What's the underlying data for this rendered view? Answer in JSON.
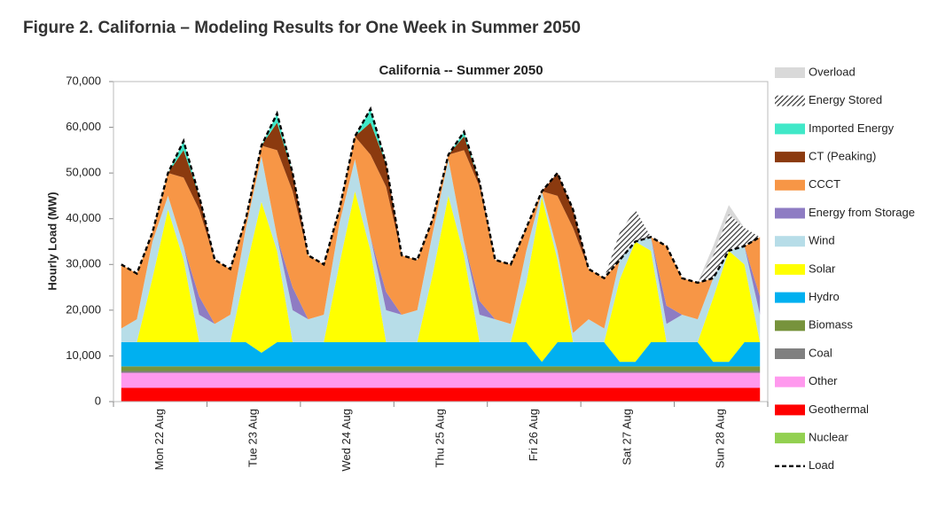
{
  "chart_data": {
    "type": "stacked_area",
    "figure_title": "Figure 2. California – Modeling Results for One Week in Summer 2050",
    "title": "California -- Summer 2050",
    "y_label": "Hourly Load (MW)",
    "categories": [
      null,
      null,
      null,
      "Mon 22 Aug",
      null,
      null,
      null,
      null,
      null,
      "Tue 23 Aug",
      null,
      null,
      null,
      null,
      null,
      "Wed 24 Aug",
      null,
      null,
      null,
      null,
      null,
      "Thu 25 Aug",
      null,
      null,
      null,
      null,
      null,
      "Fri 26 Aug",
      null,
      null,
      null,
      null,
      null,
      "Sat 27 Aug",
      null,
      null,
      null,
      null,
      null,
      "Sun 28 Aug",
      null,
      null
    ],
    "ylim": [
      0,
      70000
    ],
    "yticks": [
      0,
      {
        "value": 10000,
        "label": "10,000"
      },
      {
        "value": 20000,
        "label": "20,000"
      },
      {
        "value": 30000,
        "label": "30,000"
      },
      {
        "value": 40000,
        "label": "40,000"
      },
      {
        "value": 50000,
        "label": "50,000"
      },
      {
        "value": 60000,
        "label": "60,000"
      },
      {
        "value": 70000,
        "label": "70,000"
      }
    ],
    "series": [
      {
        "name": "Nuclear",
        "color": "#92d050",
        "values": [
          0,
          0,
          0,
          0,
          0,
          0,
          0,
          0,
          0,
          0,
          0,
          0,
          0,
          0,
          0,
          0,
          0,
          0,
          0,
          0,
          0,
          0,
          0,
          0,
          0,
          0,
          0,
          0,
          0,
          0,
          0,
          0,
          0,
          0,
          0,
          0,
          0,
          0,
          0,
          0,
          0,
          0
        ]
      },
      {
        "name": "Geothermal",
        "color": "#ff0000",
        "values": [
          3000,
          3000,
          3000,
          3000,
          3000,
          3000,
          3000,
          3000,
          3000,
          3000,
          3000,
          3000,
          3000,
          3000,
          3000,
          3000,
          3000,
          3000,
          3000,
          3000,
          3000,
          3000,
          3000,
          3000,
          3000,
          3000,
          3000,
          3000,
          3000,
          3000,
          3000,
          3000,
          3000,
          3000,
          3000,
          3000,
          3000,
          3000,
          3000,
          3000,
          3000,
          3000
        ]
      },
      {
        "name": "Other",
        "color": "#ff99ee",
        "values": [
          3300,
          3300,
          3300,
          3300,
          3300,
          3300,
          3300,
          3300,
          3300,
          3300,
          3300,
          3300,
          3300,
          3300,
          3300,
          3300,
          3300,
          3300,
          3300,
          3300,
          3300,
          3300,
          3300,
          3300,
          3300,
          3300,
          3300,
          3300,
          3300,
          3300,
          3300,
          3300,
          3300,
          3300,
          3300,
          3300,
          3300,
          3300,
          3300,
          3300,
          3300,
          3300
        ]
      },
      {
        "name": "Coal",
        "color": "#808080",
        "values": [
          400,
          400,
          400,
          400,
          400,
          400,
          400,
          400,
          400,
          400,
          400,
          400,
          400,
          400,
          400,
          400,
          400,
          400,
          400,
          400,
          400,
          400,
          400,
          400,
          400,
          400,
          400,
          400,
          400,
          400,
          400,
          400,
          400,
          400,
          400,
          400,
          400,
          400,
          400,
          400,
          400,
          400
        ]
      },
      {
        "name": "Biomass",
        "color": "#77933c",
        "values": [
          1000,
          1000,
          1000,
          1000,
          1000,
          1000,
          1000,
          1000,
          1000,
          1000,
          1000,
          1000,
          1000,
          1000,
          1000,
          1000,
          1000,
          1000,
          1000,
          1000,
          1000,
          1000,
          1000,
          1000,
          1000,
          1000,
          1000,
          1000,
          1000,
          1000,
          1000,
          1000,
          1000,
          1000,
          1000,
          1000,
          1000,
          1000,
          1000,
          1000,
          1000,
          1000
        ]
      },
      {
        "name": "Hydro",
        "color": "#00b0f0",
        "values": [
          5300,
          5300,
          5300,
          5300,
          5300,
          5300,
          5300,
          5300,
          5300,
          3000,
          5300,
          5300,
          5300,
          5300,
          5300,
          5300,
          5300,
          5300,
          5300,
          5300,
          5300,
          5300,
          5300,
          5300,
          5300,
          5300,
          5300,
          1000,
          5300,
          5300,
          5300,
          5300,
          1000,
          1000,
          5300,
          5300,
          5300,
          5300,
          1000,
          1000,
          5300,
          5300
        ]
      },
      {
        "name": "Solar",
        "color": "#ffff00",
        "values": [
          0,
          0,
          14000,
          29000,
          18000,
          0,
          0,
          0,
          16000,
          33000,
          20000,
          0,
          0,
          0,
          17000,
          33000,
          20000,
          0,
          0,
          0,
          15000,
          32000,
          19000,
          0,
          0,
          0,
          13000,
          36000,
          18000,
          0,
          0,
          0,
          18000,
          26300,
          20000,
          0,
          0,
          0,
          14000,
          24300,
          17000,
          0
        ]
      },
      {
        "name": "Wind",
        "color": "#b7dde8",
        "values": [
          3000,
          5000,
          8000,
          3000,
          3000,
          6000,
          4000,
          6000,
          9000,
          10000,
          3000,
          7000,
          5000,
          6000,
          9000,
          7000,
          3000,
          7000,
          6000,
          7000,
          9000,
          8000,
          3000,
          6000,
          5000,
          4000,
          7000,
          1300,
          2000,
          2000,
          5000,
          3000,
          4300,
          0,
          3000,
          4000,
          6000,
          5000,
          4300,
          0,
          4000,
          6000
        ]
      },
      {
        "name": "Energy from Storage",
        "color": "#8e7cc3",
        "values": [
          0,
          0,
          0,
          0,
          0,
          4000,
          0,
          0,
          0,
          0,
          0,
          5000,
          0,
          0,
          0,
          0,
          0,
          4000,
          0,
          0,
          0,
          0,
          0,
          3000,
          0,
          0,
          0,
          0,
          0,
          0,
          0,
          0,
          0,
          0,
          0,
          4000,
          0,
          0,
          0,
          0,
          0,
          4000
        ]
      },
      {
        "name": "CCCT",
        "color": "#f79646",
        "values": [
          14000,
          10000,
          2000,
          5000,
          15000,
          19000,
          14000,
          10000,
          2000,
          2300,
          19000,
          21000,
          14000,
          11000,
          3000,
          5000,
          18000,
          23000,
          13000,
          11000,
          3000,
          1000,
          20000,
          25000,
          13000,
          13000,
          5000,
          0,
          12000,
          23000,
          11000,
          11000,
          0,
          0,
          0,
          13000,
          8000,
          8000,
          0,
          0,
          0,
          13000
        ]
      },
      {
        "name": "CT (Peaking)",
        "color": "#8b3a0f",
        "values": [
          0,
          0,
          0,
          0,
          6000,
          3000,
          0,
          0,
          0,
          0,
          6000,
          4000,
          0,
          0,
          0,
          0,
          7000,
          5000,
          0,
          0,
          0,
          0,
          3000,
          1000,
          0,
          0,
          0,
          0,
          5000,
          4000,
          0,
          0,
          0,
          0,
          0,
          0,
          0,
          0,
          0,
          0,
          0,
          0
        ]
      },
      {
        "name": "Imported Energy",
        "color": "#40e8c8",
        "values": [
          0,
          0,
          0,
          0,
          2000,
          0,
          0,
          0,
          0,
          0,
          2000,
          0,
          0,
          0,
          0,
          0,
          3000,
          0,
          0,
          0,
          0,
          0,
          1000,
          0,
          0,
          0,
          0,
          0,
          0,
          0,
          0,
          0,
          0,
          0,
          0,
          0,
          0,
          0,
          0,
          0,
          0,
          0
        ]
      },
      {
        "name": "Energy Stored",
        "color": "#404040",
        "hatch": true,
        "values": [
          0,
          0,
          0,
          0,
          0,
          0,
          0,
          0,
          0,
          0,
          0,
          0,
          0,
          0,
          0,
          0,
          0,
          0,
          0,
          0,
          0,
          0,
          0,
          0,
          0,
          0,
          0,
          0,
          0,
          0,
          0,
          0,
          6000,
          7000,
          0,
          0,
          0,
          0,
          5000,
          8000,
          4000,
          0
        ]
      },
      {
        "name": "Overload",
        "color": "#d9d9d9",
        "values": [
          0,
          0,
          0,
          0,
          0,
          0,
          0,
          0,
          0,
          0,
          0,
          0,
          0,
          0,
          0,
          0,
          0,
          0,
          0,
          0,
          0,
          0,
          0,
          0,
          0,
          0,
          0,
          0,
          0,
          0,
          0,
          0,
          0,
          0,
          0,
          0,
          0,
          0,
          2000,
          2000,
          0,
          0
        ]
      }
    ],
    "load": {
      "name": "Load",
      "color": "#000000",
      "dashed": true,
      "values": [
        30000,
        28000,
        37000,
        50000,
        57000,
        45000,
        31000,
        29000,
        40000,
        56000,
        63000,
        50000,
        32000,
        30000,
        42000,
        58000,
        64000,
        52000,
        32000,
        31000,
        40000,
        54000,
        59000,
        48000,
        31000,
        30000,
        38000,
        46000,
        50000,
        42000,
        29000,
        27000,
        31000,
        35000,
        36000,
        34000,
        27000,
        26000,
        27000,
        33000,
        34000,
        36000
      ]
    },
    "legend": "right"
  }
}
